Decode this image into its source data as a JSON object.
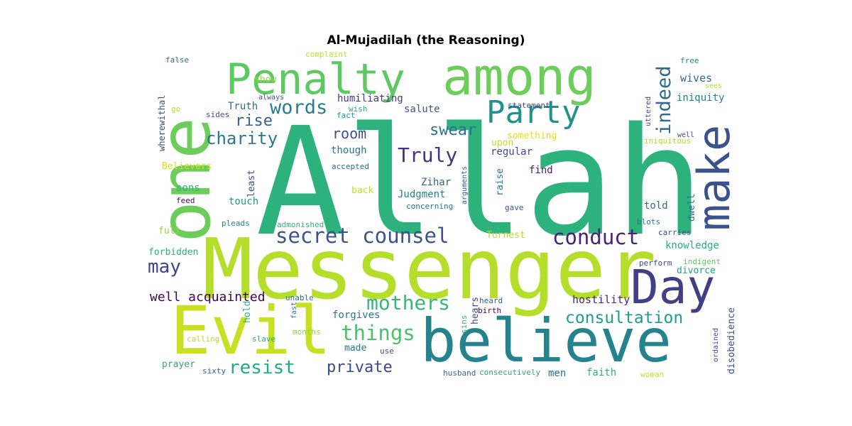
{
  "title": "Al-Mujadilah (the Reasoning)",
  "words": [
    {
      "text": "Allah",
      "color": "#2db27d"
    },
    {
      "text": "Messenger",
      "color": "#b5de2b"
    },
    {
      "text": "one",
      "color": "#6ccd5a"
    },
    {
      "text": "Penalty",
      "color": "#5ec962"
    },
    {
      "text": "among",
      "color": "#6ccd5a"
    },
    {
      "text": "believe",
      "color": "#25838e"
    },
    {
      "text": "Evil",
      "color": "#c8e020"
    },
    {
      "text": "make",
      "color": "#3b528b"
    },
    {
      "text": "Day",
      "color": "#433e85"
    },
    {
      "text": "Party",
      "color": "#21918c"
    },
    {
      "text": "secret counsel",
      "color": "#3b528b"
    },
    {
      "text": "conduct",
      "color": "#482374"
    },
    {
      "text": "consultation",
      "color": "#1f9e89"
    },
    {
      "text": "mothers",
      "color": "#35b779"
    },
    {
      "text": "things",
      "color": "#4ac16d"
    },
    {
      "text": "resist",
      "color": "#25ab82"
    },
    {
      "text": "private",
      "color": "#3e4989"
    },
    {
      "text": "may",
      "color": "#414487"
    },
    {
      "text": "words",
      "color": "#277f8e"
    },
    {
      "text": "charity",
      "color": "#2a788e"
    },
    {
      "text": "Truly",
      "color": "#46327e"
    },
    {
      "text": "swear",
      "color": "#2c728e"
    },
    {
      "text": "indeed",
      "color": "#31688e"
    },
    {
      "text": "room",
      "color": "#3b528b"
    },
    {
      "text": "rise",
      "color": "#33638d"
    },
    {
      "text": "well acquainted",
      "color": "#440154"
    },
    {
      "text": "hostility",
      "color": "#482878"
    },
    {
      "text": "divorce",
      "color": "#1fa187"
    },
    {
      "text": "knowledge",
      "color": "#27ad81"
    },
    {
      "text": "forgives",
      "color": "#2c728e"
    },
    {
      "text": "wives",
      "color": "#306a8e"
    },
    {
      "text": "iniquity",
      "color": "#26828e"
    },
    {
      "text": "humiliating",
      "color": "#453781"
    },
    {
      "text": "salute",
      "color": "#39568c"
    },
    {
      "text": "Truth",
      "color": "#31688e"
    },
    {
      "text": "though",
      "color": "#2a788e"
    },
    {
      "text": "something",
      "color": "#dde318"
    },
    {
      "text": "upon",
      "color": "#bddf26"
    },
    {
      "text": "regular",
      "color": "#3e4989"
    },
    {
      "text": "find",
      "color": "#48186a"
    },
    {
      "text": "Zihar",
      "color": "#355f8d"
    },
    {
      "text": "Judgment",
      "color": "#26828e"
    },
    {
      "text": "back",
      "color": "#c2df23"
    },
    {
      "text": "touch",
      "color": "#1f978b"
    },
    {
      "text": "least",
      "color": "#3f4889"
    },
    {
      "text": "sons",
      "color": "#2db27d"
    },
    {
      "text": "Believers",
      "color": "#d8e219"
    },
    {
      "text": "show",
      "color": "#90d743"
    },
    {
      "text": "wherewithal",
      "color": "#3e4a89"
    },
    {
      "text": "false",
      "color": "#2c728e"
    },
    {
      "text": "complaint",
      "color": "#c0df25"
    },
    {
      "text": "free",
      "color": "#25848e"
    },
    {
      "text": "sees",
      "color": "#b2dd2d"
    },
    {
      "text": "uttered",
      "color": "#414487"
    },
    {
      "text": "statement",
      "color": "#3e4a89"
    },
    {
      "text": "always",
      "color": "#3b528b"
    },
    {
      "text": "wish",
      "color": "#22a884"
    },
    {
      "text": "fact",
      "color": "#21918c"
    },
    {
      "text": "sides",
      "color": "#3d4e8a"
    },
    {
      "text": "go",
      "color": "#b8de29"
    },
    {
      "text": "well",
      "color": "#3e4989"
    },
    {
      "text": "iniquitous",
      "color": "#addc30"
    },
    {
      "text": "accepted",
      "color": "#2e6f8e"
    },
    {
      "text": "arguments",
      "color": "#3b528b"
    },
    {
      "text": "raise",
      "color": "#2a788e"
    },
    {
      "text": "feed",
      "color": "#46085c"
    },
    {
      "text": "concerning",
      "color": "#2c728e"
    },
    {
      "text": "gave",
      "color": "#39568c"
    },
    {
      "text": "told",
      "color": "#2e6e8e"
    },
    {
      "text": "dwell",
      "color": "#2f6c8e"
    },
    {
      "text": "admonished",
      "color": "#31b57b"
    },
    {
      "text": "pleads",
      "color": "#26828e"
    },
    {
      "text": "blots",
      "color": "#2a768e"
    },
    {
      "text": "full",
      "color": "#8ed645"
    },
    {
      "text": "Turnest",
      "color": "#b4de2c"
    },
    {
      "text": "carries",
      "color": "#3b528b"
    },
    {
      "text": "forbidden",
      "color": "#2db27d"
    },
    {
      "text": "indigent",
      "color": "#5ec962"
    },
    {
      "text": "perform",
      "color": "#3e4989"
    },
    {
      "text": "unable",
      "color": "#2c728e"
    },
    {
      "text": "fast",
      "color": "#2c718e"
    },
    {
      "text": "heard",
      "color": "#35608d"
    },
    {
      "text": "birth",
      "color": "#440154"
    },
    {
      "text": "hears",
      "color": "#3e4a89"
    },
    {
      "text": "hold",
      "color": "#31b57b"
    },
    {
      "text": "disobedience",
      "color": "#3e4989"
    },
    {
      "text": "ordained",
      "color": "#3e4989"
    },
    {
      "text": "months",
      "color": "#8bd646"
    },
    {
      "text": "sins",
      "color": "#35b779"
    },
    {
      "text": "calling",
      "color": "#b4de2c"
    },
    {
      "text": "slave",
      "color": "#22a884"
    },
    {
      "text": "made",
      "color": "#2a768e"
    },
    {
      "text": "use",
      "color": "#3e4989"
    },
    {
      "text": "prayer",
      "color": "#3b9f8a"
    },
    {
      "text": "sixty",
      "color": "#355f8d"
    },
    {
      "text": "husband",
      "color": "#31688e"
    },
    {
      "text": "consecutively",
      "color": "#3b9f8a"
    },
    {
      "text": "men",
      "color": "#2f6c8e"
    },
    {
      "text": "faith",
      "color": "#2db27d"
    },
    {
      "text": "woman",
      "color": "#c8e020"
    }
  ]
}
